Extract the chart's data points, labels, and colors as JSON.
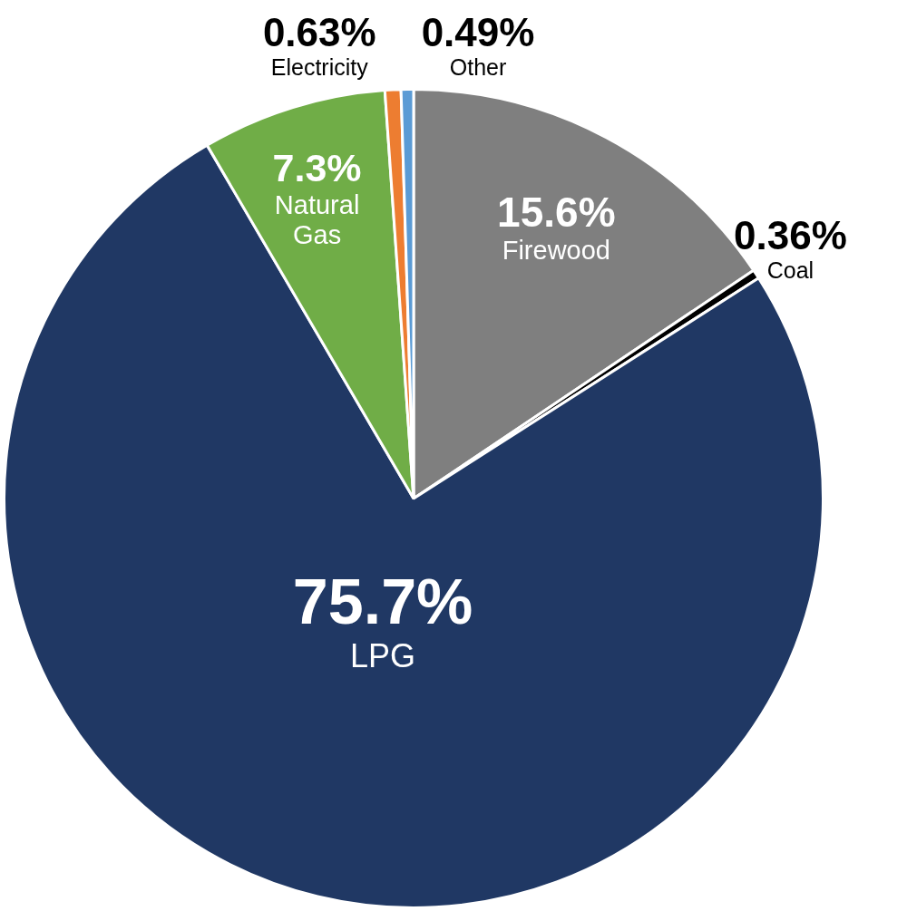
{
  "chart_data": {
    "type": "pie",
    "categories": [
      "Firewood",
      "Coal",
      "LPG",
      "Natural Gas",
      "Electricity",
      "Other"
    ],
    "values": [
      15.6,
      0.36,
      75.7,
      7.3,
      0.63,
      0.49
    ],
    "colors": [
      "#7f7f7f",
      "#000000",
      "#203864",
      "#70ad47",
      "#ed7d31",
      "#5b9bd5"
    ],
    "data_labels": true,
    "value_labels": [
      "15.6%",
      "0.36%",
      "75.7%",
      "7.3%",
      "0.63%",
      "0.49%"
    ],
    "legend": false
  }
}
